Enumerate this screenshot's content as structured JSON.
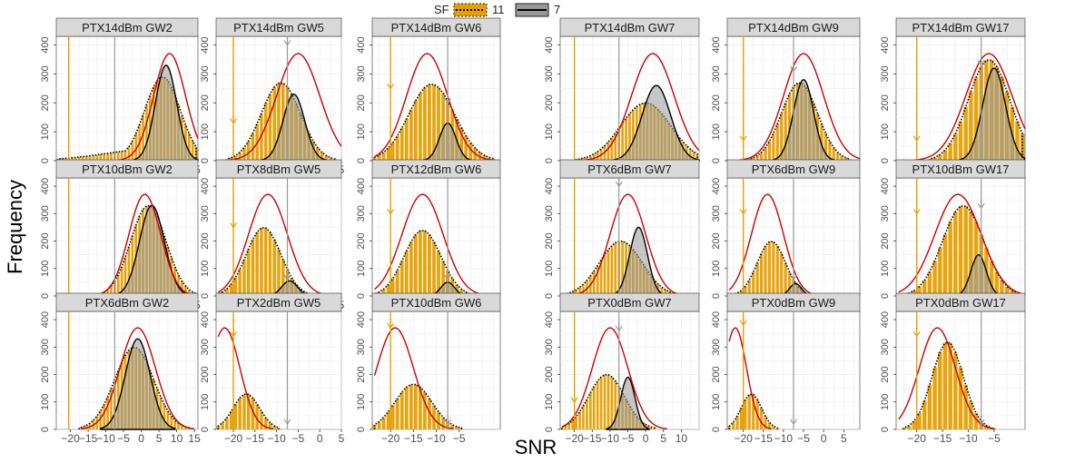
{
  "chart_data": {
    "type": "histogram-grid",
    "xlabel": "SNR",
    "ylabel": "Frequency",
    "legend": {
      "title": "SF",
      "placement": "top-center",
      "entries": [
        {
          "label": "11",
          "fill": "#E69F00",
          "line": "dotted"
        },
        {
          "label": "7",
          "fill": "#999999",
          "line": "solid"
        }
      ]
    },
    "colors": {
      "sf11_fill": "#E69F00",
      "sf7_fill": "#999999",
      "fit_curve": "#CC0000",
      "sf11_threshold": "#E69F00",
      "sf7_threshold": "#999999",
      "strip": "#D9D9D9",
      "grid": "#EBEBEB"
    },
    "columns": [
      {
        "xlim": [
          -24,
          16
        ],
        "xticks": [
          -20,
          -15,
          -10,
          -5,
          0,
          5,
          10,
          15
        ],
        "tick_labels": [
          "−20",
          "−15",
          "−10",
          "−5",
          "0",
          "5",
          "10",
          "15"
        ]
      },
      {
        "xlim": [
          -24,
          5
        ],
        "xticks": [
          -20,
          -15,
          -10,
          -5,
          0,
          5
        ],
        "tick_labels": [
          "−20",
          "−15",
          "−10",
          "−5",
          "0",
          "5"
        ]
      },
      {
        "xlim": [
          -24,
          4
        ],
        "xticks": [
          -20,
          -15,
          -10,
          -5
        ],
        "tick_labels": [
          "−20",
          "−15",
          "−10",
          "−5"
        ]
      },
      {
        "xlim": [
          -24,
          15
        ],
        "xticks": [
          -20,
          -15,
          -10,
          -5,
          0,
          5,
          10
        ],
        "tick_labels": [
          "−20",
          "−15",
          "−10",
          "−5",
          "0",
          "5",
          "10"
        ]
      },
      {
        "xlim": [
          -24,
          9
        ],
        "xticks": [
          -20,
          -15,
          -10,
          -5,
          0,
          5
        ],
        "tick_labels": [
          "−20",
          "−15",
          "−10",
          "−5",
          "0",
          "5"
        ]
      },
      {
        "xlim": [
          -24,
          1
        ],
        "xticks": [
          -20,
          -15,
          -10,
          -5
        ],
        "tick_labels": [
          "−20",
          "−15",
          "−10",
          "−5"
        ]
      }
    ],
    "ylim": [
      0,
      430
    ],
    "yticks": [
      0,
      100,
      200,
      300,
      400
    ],
    "panels": [
      {
        "title": "PTX14dBm GW2",
        "sf11": {
          "mu": 6,
          "sd": 5,
          "peak": 290,
          "skew": true
        },
        "sf7": {
          "mu": 7,
          "sd": 3,
          "peak": 330
        },
        "curve": {
          "mu": 8,
          "sd": 4.5,
          "peak": 370
        },
        "vline11": -20.5,
        "vline7": -7.5,
        "arrow11": null,
        "arrow7": null
      },
      {
        "title": "PTX14dBm GW5",
        "sf11": {
          "mu": -9,
          "sd": 4.5,
          "peak": 270
        },
        "sf7": {
          "mu": -6,
          "sd": 2.5,
          "peak": 230
        },
        "curve": {
          "mu": -5,
          "sd": 5,
          "peak": 370
        },
        "vline11": -20,
        "vline7": -7.5,
        "arrow11": 130,
        "arrow7": 400
      },
      {
        "title": "PTX14dBm GW6",
        "sf11": {
          "mu": -11,
          "sd": 5,
          "peak": 265
        },
        "sf7": {
          "mu": -7.5,
          "sd": 1.8,
          "peak": 130
        },
        "curve": {
          "mu": -12,
          "sd": 4.5,
          "peak": 370
        },
        "vline11": -20,
        "vline7": -7.5,
        "arrow11": 250,
        "arrow7": 200
      },
      {
        "title": "PTX14dBm GW7",
        "sf11": {
          "mu": 0,
          "sd": 7,
          "peak": 200
        },
        "sf7": {
          "mu": 3,
          "sd": 4,
          "peak": 260
        },
        "curve": {
          "mu": 2,
          "sd": 6,
          "peak": 370
        },
        "vline11": -20,
        "vline7": -7.5,
        "arrow11": null,
        "arrow7": null
      },
      {
        "title": "PTX14dBm GW9",
        "sf11": {
          "mu": -6,
          "sd": 4.5,
          "peak": 270
        },
        "sf7": {
          "mu": -5,
          "sd": 2.5,
          "peak": 280
        },
        "curve": {
          "mu": -5,
          "sd": 5,
          "peak": 370
        },
        "vline11": -20,
        "vline7": -7.5,
        "arrow11": 70,
        "arrow7": 310
      },
      {
        "title": "PTX14dBm GW17",
        "sf11": {
          "mu": -6,
          "sd": 4,
          "peak": 350
        },
        "sf7": {
          "mu": -5,
          "sd": 2.2,
          "peak": 320
        },
        "curve": {
          "mu": -6,
          "sd": 4.5,
          "peak": 370
        },
        "vline11": -20,
        "vline7": -7.5,
        "arrow11": 70,
        "arrow7": 330
      },
      {
        "title": "PTX10dBm GW2",
        "sf11": {
          "mu": 2,
          "sd": 5,
          "peak": 330
        },
        "sf7": {
          "mu": 3,
          "sd": 3.5,
          "peak": 330
        },
        "curve": {
          "mu": 1,
          "sd": 4.5,
          "peak": 370
        },
        "vline11": -20.5,
        "vline7": -7.5,
        "arrow11": null,
        "arrow7": null
      },
      {
        "title": "PTX8dBm GW5",
        "sf11": {
          "mu": -13,
          "sd": 4,
          "peak": 250
        },
        "sf7": {
          "mu": -7,
          "sd": 1.8,
          "peak": 55
        },
        "curve": {
          "mu": -12,
          "sd": 4.5,
          "peak": 370
        },
        "vline11": -20,
        "vline7": -7.5,
        "arrow11": 250,
        "arrow7": 60
      },
      {
        "title": "PTX12dBm GW6",
        "sf11": {
          "mu": -13,
          "sd": 4,
          "peak": 240
        },
        "sf7": {
          "mu": -7.5,
          "sd": 1.5,
          "peak": 50
        },
        "curve": {
          "mu": -13,
          "sd": 4.5,
          "peak": 370
        },
        "vline11": -20,
        "vline7": -7.5,
        "arrow11": 300,
        "arrow7": 60
      },
      {
        "title": "PTX6dBm GW7",
        "sf11": {
          "mu": -7,
          "sd": 6,
          "peak": 200
        },
        "sf7": {
          "mu": -2,
          "sd": 2.5,
          "peak": 250
        },
        "curve": {
          "mu": -5,
          "sd": 5,
          "peak": 370
        },
        "vline11": -20,
        "vline7": -7.5,
        "arrow11": null,
        "arrow7": 400
      },
      {
        "title": "PTX6dBm GW9",
        "sf11": {
          "mu": -13,
          "sd": 3.5,
          "peak": 200
        },
        "sf7": {
          "mu": -7,
          "sd": 1.5,
          "peak": 45
        },
        "curve": {
          "mu": -14,
          "sd": 4,
          "peak": 370
        },
        "vline11": -20,
        "vline7": -7.5,
        "arrow11": 300,
        "arrow7": 60
      },
      {
        "title": "PTX10dBm GW17",
        "sf11": {
          "mu": -11,
          "sd": 4,
          "peak": 330
        },
        "sf7": {
          "mu": -8,
          "sd": 1.5,
          "peak": 150
        },
        "curve": {
          "mu": -12,
          "sd": 4.5,
          "peak": 370
        },
        "vline11": -20,
        "vline7": -7.5,
        "arrow11": 300,
        "arrow7": 320
      },
      {
        "title": "PTX6dBm GW2",
        "sf11": {
          "mu": -2,
          "sd": 5.5,
          "peak": 300
        },
        "sf7": {
          "mu": -1,
          "sd": 3.5,
          "peak": 330
        },
        "curve": {
          "mu": -1,
          "sd": 5,
          "peak": 370
        },
        "vline11": -20.5,
        "vline7": -7.5,
        "arrow11": null,
        "arrow7": null
      },
      {
        "title": "PTX2dBm GW5",
        "sf11": {
          "mu": -17,
          "sd": 3,
          "peak": 130
        },
        "sf7": null,
        "curve": {
          "mu": -22,
          "sd": 3.5,
          "peak": 370
        },
        "vline11": -20,
        "vline7": -7.5,
        "arrow11": 340,
        "arrow7": 20
      },
      {
        "title": "PTX10dBm GW6",
        "sf11": {
          "mu": -15,
          "sd": 4,
          "peak": 165
        },
        "sf7": null,
        "curve": {
          "mu": -19,
          "sd": 4,
          "peak": 370
        },
        "vline11": -20,
        "vline7": -7.5,
        "arrow11": 370,
        "arrow7": 20
      },
      {
        "title": "PTX0dBm GW7",
        "sf11": {
          "mu": -11,
          "sd": 5,
          "peak": 200
        },
        "sf7": {
          "mu": -5,
          "sd": 2,
          "peak": 190
        },
        "curve": {
          "mu": -10,
          "sd": 5,
          "peak": 370
        },
        "vline11": -20,
        "vline7": -7.5,
        "arrow11": 100,
        "arrow7": 360
      },
      {
        "title": "PTX0dBm GW9",
        "sf11": {
          "mu": -18,
          "sd": 2.5,
          "peak": 130
        },
        "sf7": null,
        "curve": {
          "mu": -22,
          "sd": 2.8,
          "peak": 370
        },
        "vline11": -20,
        "vline7": -7.5,
        "arrow11": 380,
        "arrow7": 20
      },
      {
        "title": "PTX0dBm GW17",
        "sf11": {
          "mu": -14,
          "sd": 3,
          "peak": 320
        },
        "sf7": null,
        "curve": {
          "mu": -16,
          "sd": 3.5,
          "peak": 370
        },
        "vline11": -20,
        "vline7": -7.5,
        "arrow11": 340,
        "arrow7": 20
      }
    ]
  }
}
